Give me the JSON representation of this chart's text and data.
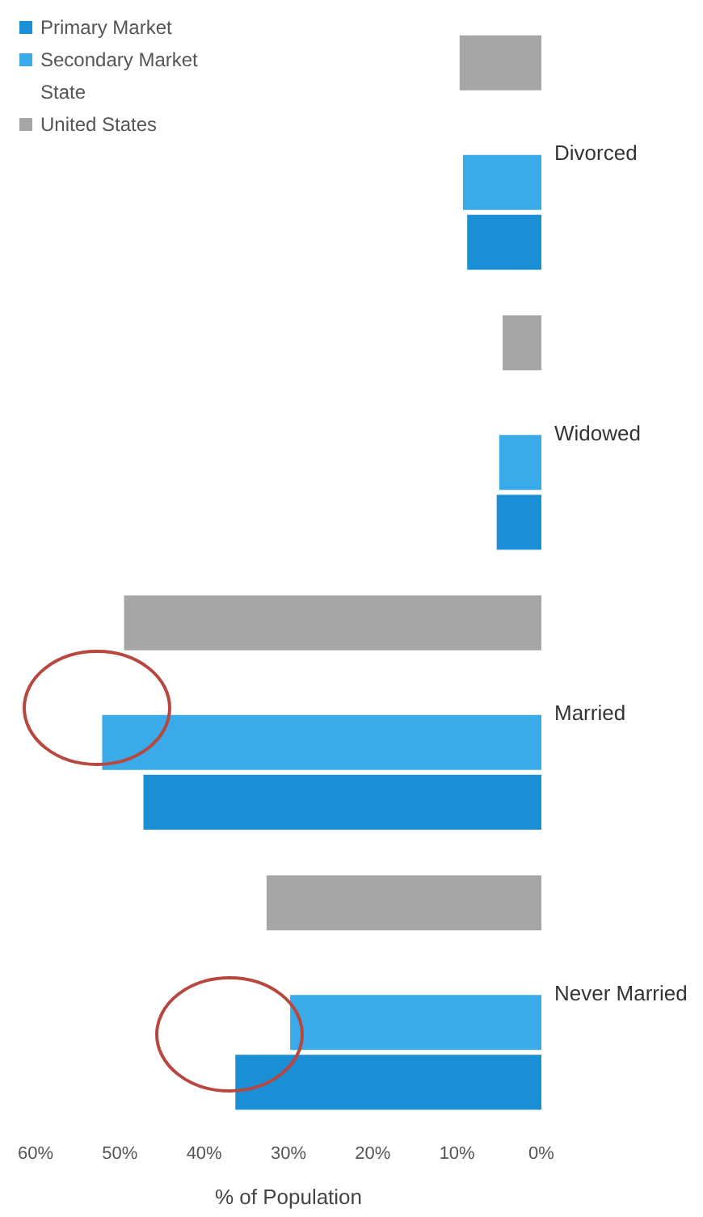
{
  "chart_data": {
    "type": "bar",
    "orientation": "horizontal",
    "categories": [
      "Divorced",
      "Widowed",
      "Married",
      "Never Married"
    ],
    "series": [
      {
        "name": "Primary Market",
        "color": "#1a8fd6",
        "values": [
          8.8,
          5.3,
          47.2,
          36.3
        ]
      },
      {
        "name": "Secondary Market",
        "color": "#3aaae8",
        "values": [
          9.3,
          5.0,
          52.1,
          29.8
        ]
      },
      {
        "name": "State",
        "values": [
          null,
          null,
          null,
          null
        ]
      },
      {
        "name": "United States",
        "color": "#a6a6a6",
        "values": [
          9.7,
          4.6,
          49.5,
          32.6
        ]
      }
    ],
    "xlabel": "% of Population",
    "xlim": [
      60,
      0
    ],
    "xticks": [
      {
        "value": 60,
        "label": "60%"
      },
      {
        "value": 50,
        "label": "50%"
      },
      {
        "value": 40,
        "label": "40%"
      },
      {
        "value": 30,
        "label": "30%"
      },
      {
        "value": 20,
        "label": "20%"
      },
      {
        "value": 10,
        "label": "10%"
      },
      {
        "value": 0,
        "label": "0%"
      }
    ],
    "legend": "top left"
  }
}
